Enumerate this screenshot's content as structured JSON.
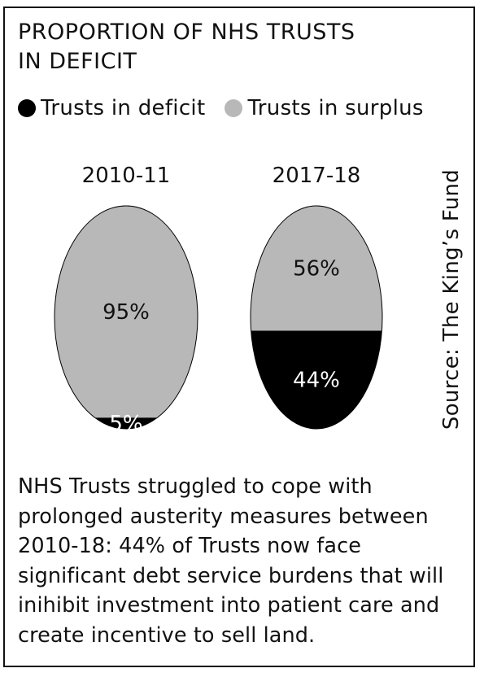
{
  "chart_data": {
    "type": "pie",
    "title_lines": [
      "PROPORTION OF NHS TRUSTS",
      "IN DEFICIT"
    ],
    "legend": [
      {
        "label": "Trusts in deficit",
        "color": "#000000"
      },
      {
        "label": "Trusts in surplus",
        "color": "#b8b8b8"
      }
    ],
    "series_names": [
      "Trusts in deficit",
      "Trusts in surplus"
    ],
    "charts": [
      {
        "label": "2010-11",
        "deficit": 5,
        "surplus": 95,
        "deficit_label": "5%",
        "surplus_label": "95%"
      },
      {
        "label": "2017-18",
        "deficit": 44,
        "surplus": 56,
        "deficit_label": "44%",
        "surplus_label": "56%"
      }
    ]
  },
  "source": "Source: The King’s Fund",
  "caption": "NHS Trusts struggled to cope with prolonged austerity measures between 2010-18: 44% of Trusts now face significant debt service burdens that will inihibit investment into patient care and create incentive to sell land."
}
